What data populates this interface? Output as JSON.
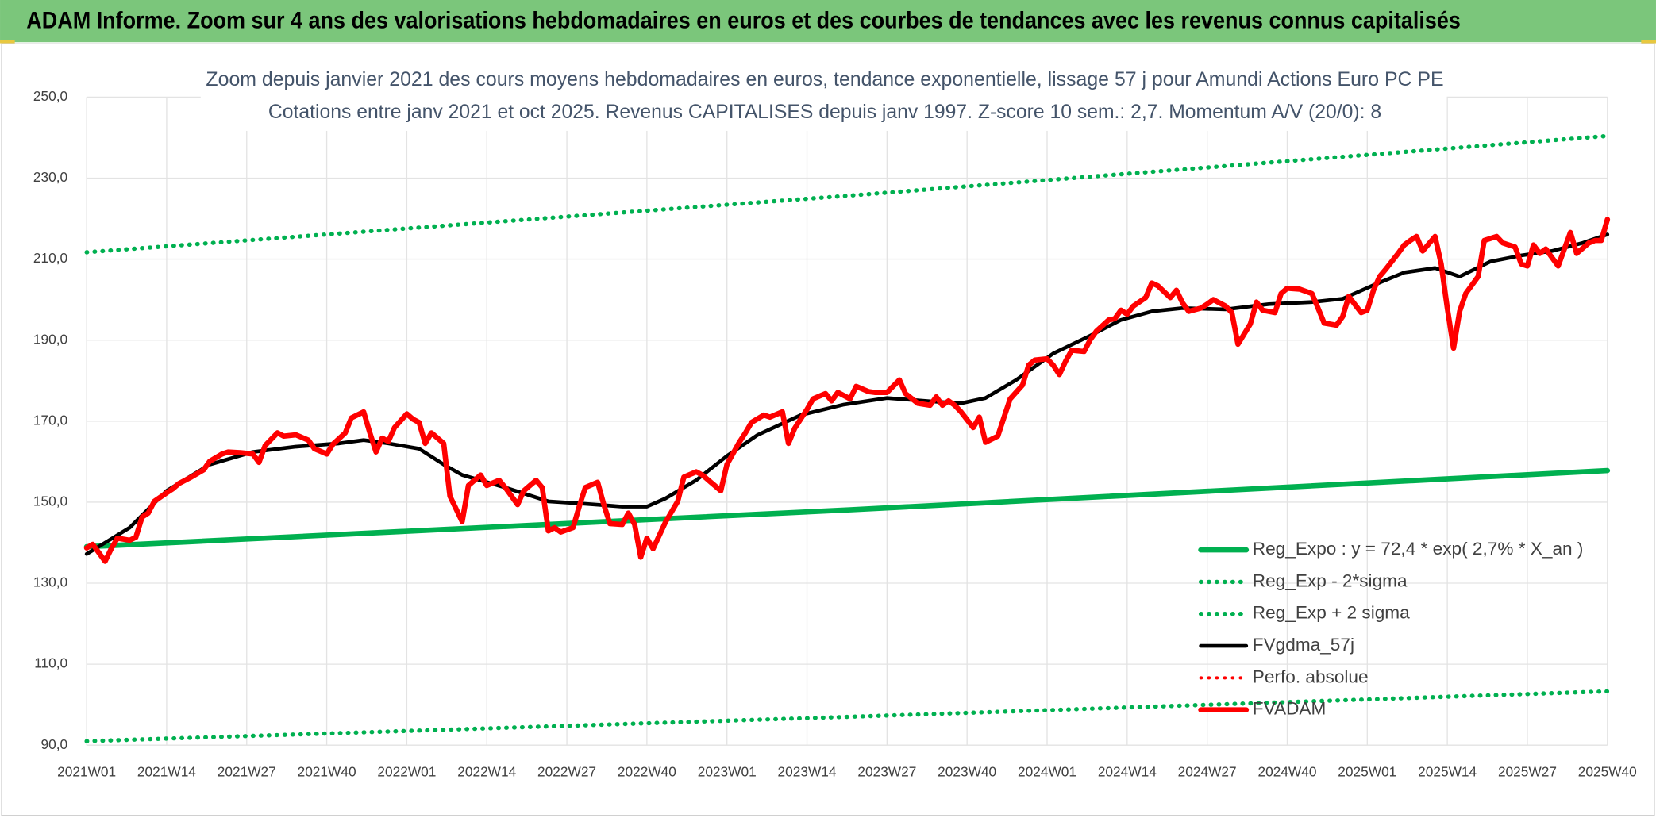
{
  "header": {
    "title": "ADAM Informe. Zoom sur 4 ans des valorisations hebdomadaires en euros et des courbes de tendances avec les revenus connus capitalisés"
  },
  "chart_data": {
    "type": "line",
    "title": "Zoom depuis janvier 2021 des cours moyens hebdomadaires en euros, tendance exponentielle, lissage 57 j pour Amundi Actions Euro PC PE",
    "subtitle": "Cotations entre janv 2021 et oct 2025. Revenus CAPITALISES depuis janv 1997. Z-score 10 sem.: 2,7. Momentum A/V (20/0): 8",
    "xlim": [
      0,
      247
    ],
    "xticks": [
      {
        "value": 0,
        "label": "2021W01"
      },
      {
        "value": 13,
        "label": "2021W14"
      },
      {
        "value": 26,
        "label": "2021W27"
      },
      {
        "value": 39,
        "label": "2021W40"
      },
      {
        "value": 52,
        "label": "2022W01"
      },
      {
        "value": 65,
        "label": "2022W14"
      },
      {
        "value": 78,
        "label": "2022W27"
      },
      {
        "value": 91,
        "label": "2022W40"
      },
      {
        "value": 104,
        "label": "2023W01"
      },
      {
        "value": 117,
        "label": "2023W14"
      },
      {
        "value": 130,
        "label": "2023W27"
      },
      {
        "value": 143,
        "label": "2023W40"
      },
      {
        "value": 156,
        "label": "2024W01"
      },
      {
        "value": 169,
        "label": "2024W14"
      },
      {
        "value": 182,
        "label": "2024W27"
      },
      {
        "value": 195,
        "label": "2024W40"
      },
      {
        "value": 208,
        "label": "2025W01"
      },
      {
        "value": 221,
        "label": "2025W14"
      },
      {
        "value": 234,
        "label": "2025W27"
      },
      {
        "value": 247,
        "label": "2025W40"
      }
    ],
    "ylim": [
      90,
      250
    ],
    "yticks": [
      {
        "value": 90,
        "label": "90,0"
      },
      {
        "value": 110,
        "label": "110,0"
      },
      {
        "value": 130,
        "label": "130,0"
      },
      {
        "value": 150,
        "label": "150,0"
      },
      {
        "value": 170,
        "label": "170,0"
      },
      {
        "value": 190,
        "label": "190,0"
      },
      {
        "value": 210,
        "label": "210,0"
      },
      {
        "value": 230,
        "label": "230,0"
      },
      {
        "value": 250,
        "label": "250,0"
      }
    ],
    "grid": true,
    "legend": "bottom-right",
    "series": [
      {
        "name": "Reg_Expo : y = 72,4 * exp( 2,7% *  X_an )",
        "color": "#00b050",
        "style": "solid",
        "x": [
          0,
          124,
          247
        ],
        "values": [
          139.0,
          148.1,
          157.8
        ]
      },
      {
        "name": "Reg_Exp - 2*sigma",
        "color": "#00b050",
        "style": "dotted",
        "x": [
          0,
          124,
          247
        ],
        "values": [
          91.0,
          97.0,
          103.3
        ]
      },
      {
        "name": "Reg_Exp + 2 sigma",
        "color": "#00b050",
        "style": "dotted",
        "x": [
          0,
          124,
          247
        ],
        "values": [
          211.7,
          225.7,
          240.4
        ]
      },
      {
        "name": "FVgdma_57j",
        "color": "#000000",
        "style": "solid",
        "x": [
          0,
          7,
          13,
          20,
          27,
          34,
          41,
          45,
          49,
          54,
          58,
          61,
          68,
          75,
          80,
          87,
          91,
          94,
          99,
          104,
          109,
          116,
          123,
          130,
          137,
          142,
          146,
          151,
          157,
          163,
          168,
          173,
          178,
          185,
          192,
          199,
          204,
          209,
          214,
          219,
          223,
          228,
          233,
          238,
          243,
          247
        ],
        "values": [
          137.2,
          143.7,
          152.8,
          159.3,
          162.4,
          163.7,
          164.5,
          165.3,
          164.5,
          163.2,
          159.3,
          156.7,
          153.6,
          150.2,
          149.7,
          148.9,
          148.9,
          150.9,
          155.4,
          161.4,
          166.6,
          171.5,
          174.1,
          175.7,
          174.9,
          174.4,
          175.7,
          180.2,
          186.7,
          191.1,
          195.0,
          197.1,
          197.9,
          197.6,
          198.9,
          199.4,
          200.2,
          203.6,
          206.7,
          207.8,
          205.7,
          209.4,
          210.9,
          212.0,
          214.0,
          216.1
        ]
      },
      {
        "name": "Perfo. absolue",
        "color": "#ff0000",
        "style": "dotted",
        "x": [],
        "values": []
      },
      {
        "name": "FVADAM",
        "color": "#ff0000",
        "style": "solid",
        "x": [
          0,
          1,
          3,
          4,
          5,
          7,
          8,
          9,
          10,
          11,
          13,
          14,
          15,
          17,
          19,
          20,
          22,
          23,
          25,
          27,
          28,
          29,
          31,
          32,
          34,
          36,
          37,
          39,
          40,
          42,
          43,
          45,
          46,
          47,
          48,
          49,
          50,
          52,
          53,
          54,
          55,
          56,
          58,
          59,
          61,
          62,
          64,
          65,
          67,
          68,
          69,
          70,
          71,
          73,
          74,
          75,
          76,
          77,
          79,
          80,
          81,
          83,
          84,
          85,
          87,
          88,
          89,
          90,
          91,
          92,
          94,
          96,
          97,
          99,
          100,
          102,
          103,
          104,
          106,
          107,
          108,
          110,
          111,
          113,
          114,
          115,
          117,
          118,
          120,
          121,
          122,
          124,
          125,
          127,
          128,
          130,
          132,
          133,
          135,
          137,
          138,
          139,
          140,
          141,
          142,
          144,
          145,
          146,
          148,
          149,
          150,
          152,
          153,
          154,
          156,
          157,
          158,
          159,
          160,
          162,
          163,
          164,
          166,
          167,
          168,
          169,
          170,
          172,
          173,
          174,
          176,
          177,
          178,
          179,
          181,
          182,
          183,
          185,
          186,
          187,
          189,
          190,
          191,
          193,
          194,
          195,
          197,
          199,
          200,
          201,
          203,
          204,
          205,
          207,
          208,
          209,
          210,
          211,
          213,
          214,
          215,
          216,
          217,
          219,
          220,
          221,
          222,
          223,
          224,
          226,
          227,
          229,
          230,
          232,
          233,
          234,
          235,
          236,
          237,
          238,
          239,
          241,
          242,
          244,
          245,
          246,
          247
        ],
        "values": [
          138.7,
          139.6,
          135.4,
          138.5,
          141.1,
          140.6,
          141.3,
          146.3,
          147.3,
          150.2,
          152.3,
          153.3,
          154.6,
          156.2,
          158.0,
          160.1,
          161.9,
          162.4,
          162.2,
          161.9,
          159.8,
          164.0,
          167.1,
          166.3,
          166.6,
          165.3,
          163.2,
          161.9,
          164.3,
          167.1,
          170.8,
          172.3,
          167.1,
          162.4,
          165.8,
          165.0,
          168.4,
          171.8,
          170.5,
          169.7,
          164.5,
          167.1,
          164.5,
          151.5,
          145.2,
          154.1,
          156.7,
          154.1,
          155.4,
          153.6,
          151.5,
          149.4,
          152.8,
          155.4,
          153.6,
          142.9,
          143.7,
          142.6,
          143.7,
          148.9,
          153.6,
          154.9,
          149.4,
          144.7,
          144.5,
          147.3,
          144.5,
          136.4,
          141.1,
          138.5,
          145.0,
          150.2,
          156.2,
          157.5,
          156.7,
          154.1,
          152.8,
          159.3,
          164.8,
          167.1,
          169.7,
          171.5,
          171.0,
          172.3,
          164.5,
          168.2,
          172.9,
          175.5,
          176.8,
          175.0,
          177.1,
          175.5,
          178.6,
          177.3,
          177.1,
          177.1,
          180.2,
          176.8,
          174.4,
          173.9,
          176.0,
          173.9,
          175.0,
          173.9,
          172.3,
          168.4,
          171.0,
          164.8,
          166.3,
          171.0,
          175.5,
          178.9,
          183.8,
          185.1,
          185.4,
          183.8,
          181.5,
          184.8,
          187.5,
          187.2,
          190.1,
          192.2,
          195.0,
          195.3,
          197.4,
          196.4,
          198.4,
          200.5,
          204.1,
          203.4,
          200.5,
          202.3,
          199.2,
          197.1,
          197.9,
          198.9,
          200.0,
          198.4,
          196.8,
          189.0,
          194.0,
          199.4,
          197.4,
          196.8,
          201.5,
          202.8,
          202.6,
          201.5,
          197.9,
          194.2,
          193.7,
          195.8,
          200.8,
          196.8,
          197.4,
          202.3,
          205.7,
          207.5,
          211.4,
          213.5,
          214.6,
          215.6,
          212.0,
          215.6,
          208.8,
          197.9,
          188.0,
          197.1,
          201.5,
          205.7,
          214.6,
          215.6,
          214.0,
          213.0,
          208.8,
          208.3,
          213.5,
          211.4,
          212.5,
          210.4,
          208.3,
          216.6,
          211.4,
          214.0,
          214.6,
          214.6,
          219.8
        ]
      }
    ]
  }
}
